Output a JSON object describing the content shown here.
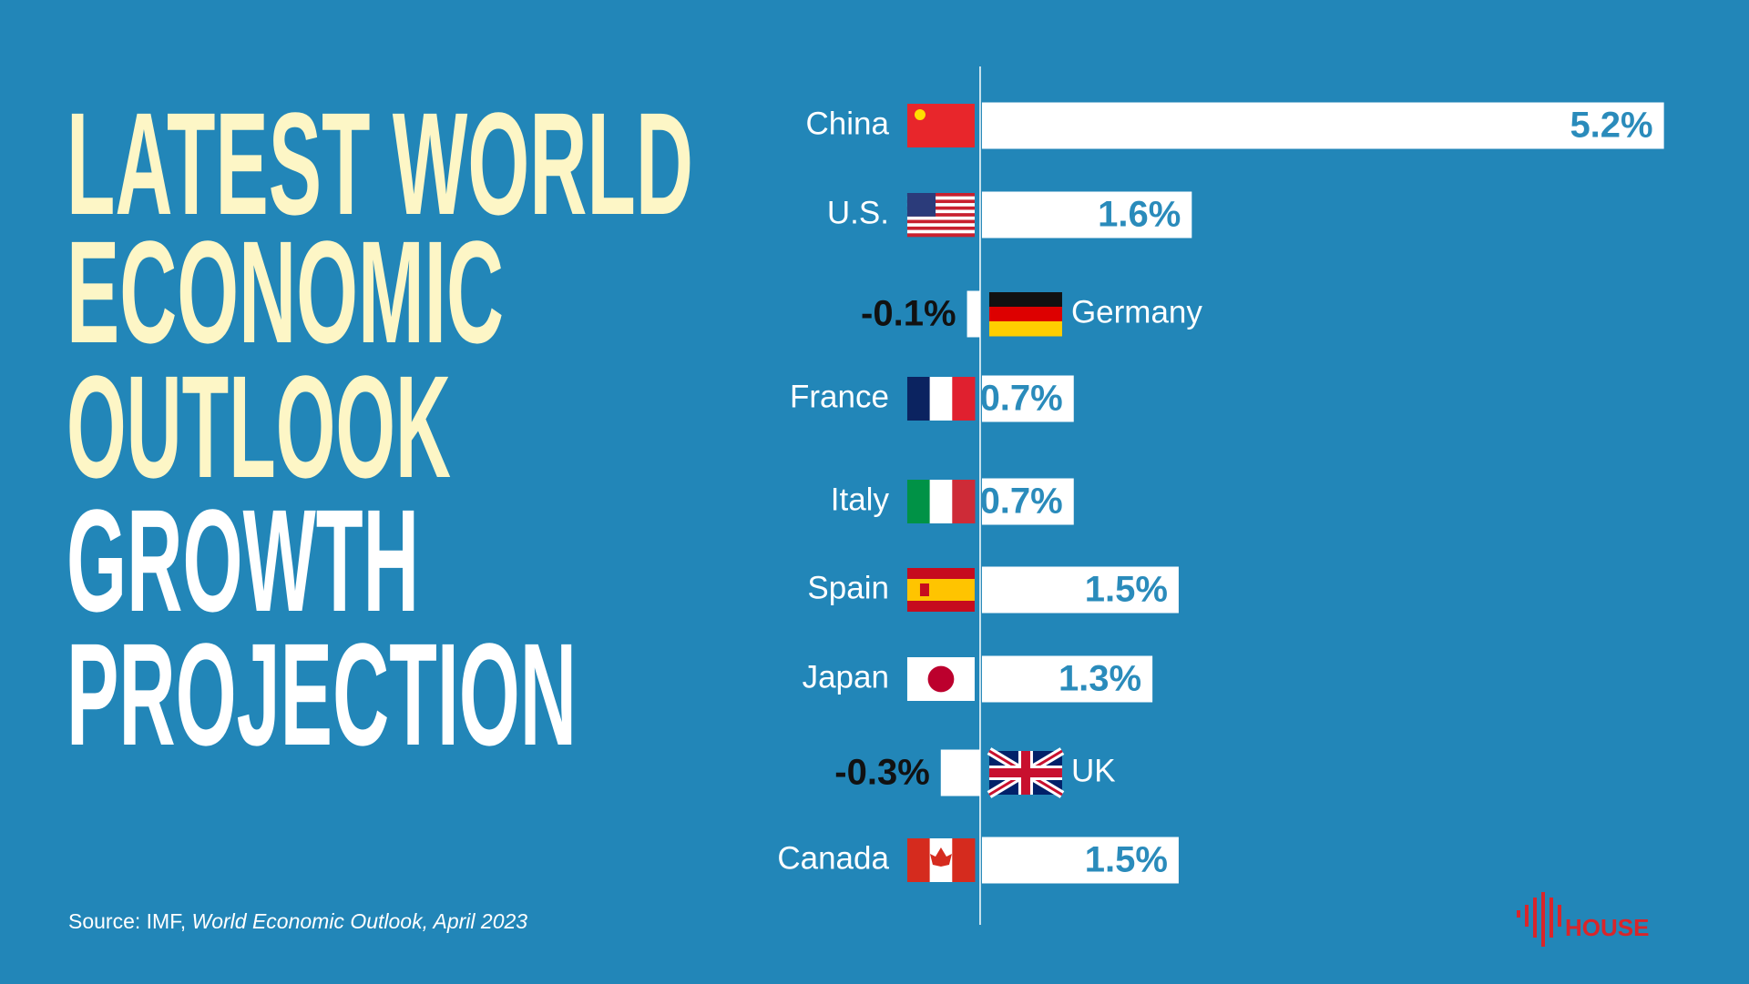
{
  "chart_data": {
    "type": "bar",
    "orientation": "horizontal",
    "title": [
      "LATEST WORLD",
      "ECONOMIC",
      "OUTLOOK",
      "GROWTH",
      "PROJECTION"
    ],
    "title_colors": [
      "#fdf6c6",
      "#fdf6c6",
      "#fdf6c6",
      "#ffffff",
      "#ffffff"
    ],
    "categories": [
      "China",
      "U.S.",
      "Germany",
      "France",
      "Italy",
      "Spain",
      "Japan",
      "UK",
      "Canada"
    ],
    "values": [
      5.2,
      1.6,
      -0.1,
      0.7,
      0.7,
      1.5,
      1.3,
      -0.3,
      1.5
    ],
    "value_labels": [
      "5.2%",
      "1.6%",
      "-0.1%",
      "0.7%",
      "0.7%",
      "1.5%",
      "1.3%",
      "-0.3%",
      "1.5%"
    ],
    "color": "#ffffff",
    "label_color": "#2a8bbb",
    "negative_label_color": "#111111",
    "xlim": [
      -1.5,
      5.8
    ],
    "source": {
      "prefix": "Source: IMF,",
      "publication": "World Economic Outlook, April 2023"
    },
    "logo": "HOUSE"
  }
}
